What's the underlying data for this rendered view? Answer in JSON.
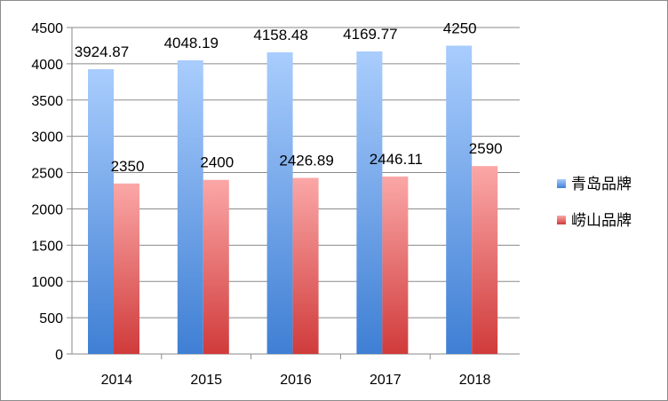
{
  "chart_data": {
    "type": "bar",
    "title": "",
    "xlabel": "",
    "ylabel": "",
    "categories": [
      "2014",
      "2015",
      "2016",
      "2017",
      "2018"
    ],
    "series": [
      {
        "name": "青岛品牌",
        "values": [
          3924.87,
          4048.19,
          4158.48,
          4169.77,
          4250
        ],
        "labels": [
          "3924.87",
          "4048.19",
          "4158.48",
          "4169.77",
          "4250"
        ],
        "color_top": "#a9cdfd",
        "color_bottom": "#3f7fd4"
      },
      {
        "name": "崂山品牌",
        "values": [
          2350,
          2400,
          2426.89,
          2446.11,
          2590
        ],
        "labels": [
          "2350",
          "2400",
          "2426.89",
          "2446.11",
          "2590"
        ],
        "color_top": "#fba7a7",
        "color_bottom": "#d03b3b"
      }
    ],
    "ylim": [
      0,
      4500
    ],
    "yticks": [
      0,
      500,
      1000,
      1500,
      2000,
      2500,
      3000,
      3500,
      4000,
      4500
    ],
    "ytick_labels": [
      "0",
      "500",
      "1000",
      "1500",
      "2000",
      "2500",
      "3000",
      "3500",
      "4000",
      "4500"
    ],
    "grid": true,
    "legend_position": "right"
  }
}
